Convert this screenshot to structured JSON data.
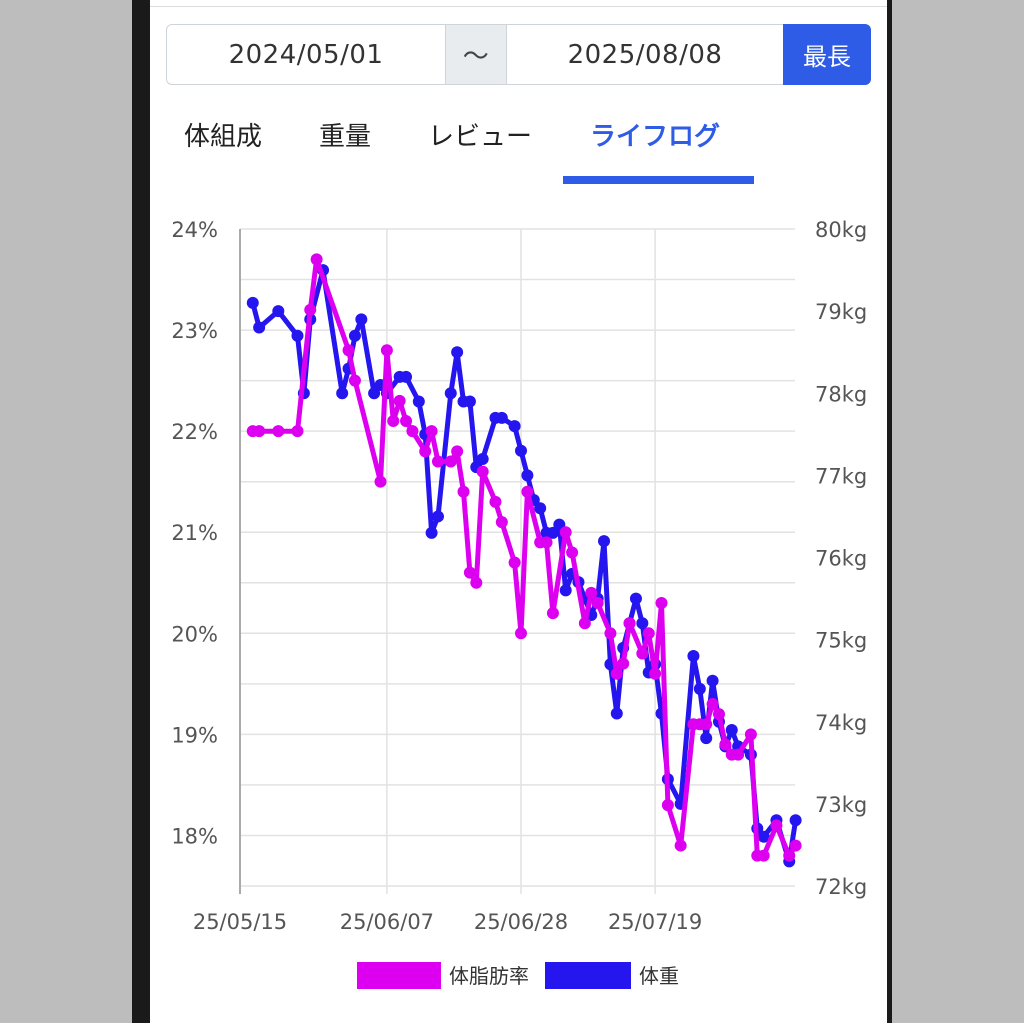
{
  "date_range": {
    "start": "2024/05/01",
    "separator": "〜",
    "end": "2025/08/08",
    "button": "最長"
  },
  "tabs": [
    {
      "label": "体組成",
      "active": false
    },
    {
      "label": "重量",
      "active": false
    },
    {
      "label": "レビュー",
      "active": false
    },
    {
      "label": "ライフログ",
      "active": true
    }
  ],
  "colors": {
    "accent": "#2e5ce6",
    "fat": "#dd00f0",
    "weight": "#2515ee"
  },
  "chart_data": {
    "type": "line",
    "x_type": "date",
    "x_ticks": [
      "25/05/15",
      "25/06/07",
      "25/06/28",
      "25/07/19"
    ],
    "x_tick_dates": [
      "2025-05-15",
      "2025-06-07",
      "2025-06-28",
      "2025-07-19"
    ],
    "y_left": {
      "ticks": [
        "24%",
        "23%",
        "22%",
        "21%",
        "20%",
        "19%",
        "18%"
      ],
      "range": [
        17.5,
        24
      ]
    },
    "y_right": {
      "ticks": [
        "80kg",
        "79kg",
        "78kg",
        "77kg",
        "76kg",
        "75kg",
        "74kg",
        "73kg",
        "72kg"
      ],
      "range": [
        72,
        80
      ]
    },
    "grid": true,
    "legend_position": "bottom",
    "series": [
      {
        "name": "体脂肪率",
        "axis": "left",
        "color": "#dd00f0",
        "points": [
          [
            "2025-05-17",
            22.0
          ],
          [
            "2025-05-18",
            22.0
          ],
          [
            "2025-05-21",
            22.0
          ],
          [
            "2025-05-24",
            22.0
          ],
          [
            "2025-05-26",
            23.2
          ],
          [
            "2025-05-27",
            23.7
          ],
          [
            "2025-06-01",
            22.8
          ],
          [
            "2025-06-02",
            22.5
          ],
          [
            "2025-06-06",
            21.5
          ],
          [
            "2025-06-07",
            22.8
          ],
          [
            "2025-06-08",
            22.1
          ],
          [
            "2025-06-09",
            22.3
          ],
          [
            "2025-06-10",
            22.1
          ],
          [
            "2025-06-11",
            22.0
          ],
          [
            "2025-06-13",
            21.8
          ],
          [
            "2025-06-14",
            22.0
          ],
          [
            "2025-06-15",
            21.7
          ],
          [
            "2025-06-17",
            21.7
          ],
          [
            "2025-06-18",
            21.8
          ],
          [
            "2025-06-19",
            21.4
          ],
          [
            "2025-06-20",
            20.6
          ],
          [
            "2025-06-21",
            20.5
          ],
          [
            "2025-06-22",
            21.6
          ],
          [
            "2025-06-24",
            21.3
          ],
          [
            "2025-06-25",
            21.1
          ],
          [
            "2025-06-27",
            20.7
          ],
          [
            "2025-06-28",
            20.0
          ],
          [
            "2025-06-29",
            21.4
          ],
          [
            "2025-07-01",
            20.9
          ],
          [
            "2025-07-02",
            20.9
          ],
          [
            "2025-07-03",
            20.2
          ],
          [
            "2025-07-05",
            21.0
          ],
          [
            "2025-07-06",
            20.8
          ],
          [
            "2025-07-08",
            20.1
          ],
          [
            "2025-07-09",
            20.4
          ],
          [
            "2025-07-10",
            20.3
          ],
          [
            "2025-07-12",
            20.0
          ],
          [
            "2025-07-13",
            19.6
          ],
          [
            "2025-07-14",
            19.7
          ],
          [
            "2025-07-15",
            20.1
          ],
          [
            "2025-07-17",
            19.8
          ],
          [
            "2025-07-18",
            20.0
          ],
          [
            "2025-07-19",
            19.6
          ],
          [
            "2025-07-20",
            20.3
          ],
          [
            "2025-07-21",
            18.3
          ],
          [
            "2025-07-23",
            17.9
          ],
          [
            "2025-07-25",
            19.1
          ],
          [
            "2025-07-26",
            19.1
          ],
          [
            "2025-07-27",
            19.1
          ],
          [
            "2025-07-28",
            19.3
          ],
          [
            "2025-07-29",
            19.2
          ],
          [
            "2025-07-30",
            18.9
          ],
          [
            "2025-07-31",
            18.8
          ],
          [
            "2025-08-01",
            18.8
          ],
          [
            "2025-08-03",
            19.0
          ],
          [
            "2025-08-04",
            17.8
          ],
          [
            "2025-08-05",
            17.8
          ],
          [
            "2025-08-07",
            18.1
          ],
          [
            "2025-08-09",
            17.8
          ],
          [
            "2025-08-10",
            17.9
          ]
        ]
      },
      {
        "name": "体重",
        "axis": "right",
        "color": "#2515ee",
        "points": [
          [
            "2025-05-17",
            79.1
          ],
          [
            "2025-05-18",
            78.8
          ],
          [
            "2025-05-21",
            79.0
          ],
          [
            "2025-05-24",
            78.7
          ],
          [
            "2025-05-25",
            78.0
          ],
          [
            "2025-05-26",
            78.9
          ],
          [
            "2025-05-28",
            79.5
          ],
          [
            "2025-05-31",
            78.0
          ],
          [
            "2025-06-01",
            78.3
          ],
          [
            "2025-06-02",
            78.7
          ],
          [
            "2025-06-03",
            78.9
          ],
          [
            "2025-06-05",
            78.0
          ],
          [
            "2025-06-06",
            78.1
          ],
          [
            "2025-06-07",
            78.0
          ],
          [
            "2025-06-09",
            78.2
          ],
          [
            "2025-06-10",
            78.2
          ],
          [
            "2025-06-12",
            77.9
          ],
          [
            "2025-06-13",
            77.5
          ],
          [
            "2025-06-14",
            76.3
          ],
          [
            "2025-06-15",
            76.5
          ],
          [
            "2025-06-17",
            78.0
          ],
          [
            "2025-06-18",
            78.5
          ],
          [
            "2025-06-19",
            77.9
          ],
          [
            "2025-06-20",
            77.9
          ],
          [
            "2025-06-21",
            77.1
          ],
          [
            "2025-06-22",
            77.2
          ],
          [
            "2025-06-24",
            77.7
          ],
          [
            "2025-06-25",
            77.7
          ],
          [
            "2025-06-27",
            77.6
          ],
          [
            "2025-06-28",
            77.3
          ],
          [
            "2025-06-29",
            77.0
          ],
          [
            "2025-06-30",
            76.7
          ],
          [
            "2025-07-01",
            76.6
          ],
          [
            "2025-07-02",
            76.3
          ],
          [
            "2025-07-03",
            76.3
          ],
          [
            "2025-07-04",
            76.4
          ],
          [
            "2025-07-05",
            75.6
          ],
          [
            "2025-07-06",
            75.8
          ],
          [
            "2025-07-07",
            75.7
          ],
          [
            "2025-07-08",
            75.5
          ],
          [
            "2025-07-09",
            75.3
          ],
          [
            "2025-07-10",
            75.5
          ],
          [
            "2025-07-11",
            76.2
          ],
          [
            "2025-07-12",
            74.7
          ],
          [
            "2025-07-13",
            74.1
          ],
          [
            "2025-07-14",
            74.9
          ],
          [
            "2025-07-15",
            75.2
          ],
          [
            "2025-07-16",
            75.5
          ],
          [
            "2025-07-17",
            75.2
          ],
          [
            "2025-07-18",
            74.6
          ],
          [
            "2025-07-19",
            74.7
          ],
          [
            "2025-07-20",
            74.1
          ],
          [
            "2025-07-21",
            73.3
          ],
          [
            "2025-07-23",
            73.0
          ],
          [
            "2025-07-25",
            74.8
          ],
          [
            "2025-07-26",
            74.4
          ],
          [
            "2025-07-27",
            73.8
          ],
          [
            "2025-07-28",
            74.5
          ],
          [
            "2025-07-29",
            74.0
          ],
          [
            "2025-07-30",
            73.7
          ],
          [
            "2025-07-31",
            73.9
          ],
          [
            "2025-08-01",
            73.7
          ],
          [
            "2025-08-03",
            73.6
          ],
          [
            "2025-08-04",
            72.7
          ],
          [
            "2025-08-05",
            72.6
          ],
          [
            "2025-08-07",
            72.8
          ],
          [
            "2025-08-09",
            72.3
          ],
          [
            "2025-08-10",
            72.8
          ]
        ]
      }
    ]
  }
}
